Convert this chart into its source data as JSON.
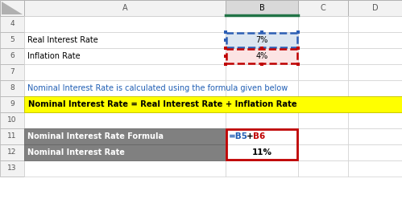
{
  "bg_color": "#ffffff",
  "header_bg": "#eeeeee",
  "col_b_header_bg": "#c0c0c0",
  "col_b_header_bottom": "#217346",
  "cell_text_row5_a": "Real Interest Rate",
  "cell_text_row5_b": "7%",
  "cell_text_row6_a": "Inflation Rate",
  "cell_text_row6_b": "4%",
  "cell_text_row8_a": "Nominal Interest Rate is calculated using the formula given below",
  "cell_text_row9": "Nominal Interest Rate = Real Interest Rate + Inflation Rate",
  "cell_text_row11_a": "Nominal Interest Rate Formula",
  "cell_text_row11_b_blue": "=B5",
  "cell_text_row11_b_plus": "+",
  "cell_text_row11_b_red": "B6",
  "cell_text_row12_a": "Nominal Interest Rate",
  "cell_text_row12_b": "11%",
  "row8_text_color": "#1f5eb4",
  "row9_text_color": "#000000",
  "row9_bg": "#ffff00",
  "gray_bg": "#808080",
  "gray_text": "#ffffff",
  "blue_border_color": "#2d5fb5",
  "blue_cell_bg": "#dce6f1",
  "red_border_color": "#c00000",
  "pink_cell_bg": "#fce4e4",
  "formula_blue": "#1f5cb3",
  "formula_red": "#c00000",
  "formula_black": "#000000",
  "grid_color": "#d0d0d0",
  "rownum_color": "#555555",
  "header_text_color": "#595959"
}
